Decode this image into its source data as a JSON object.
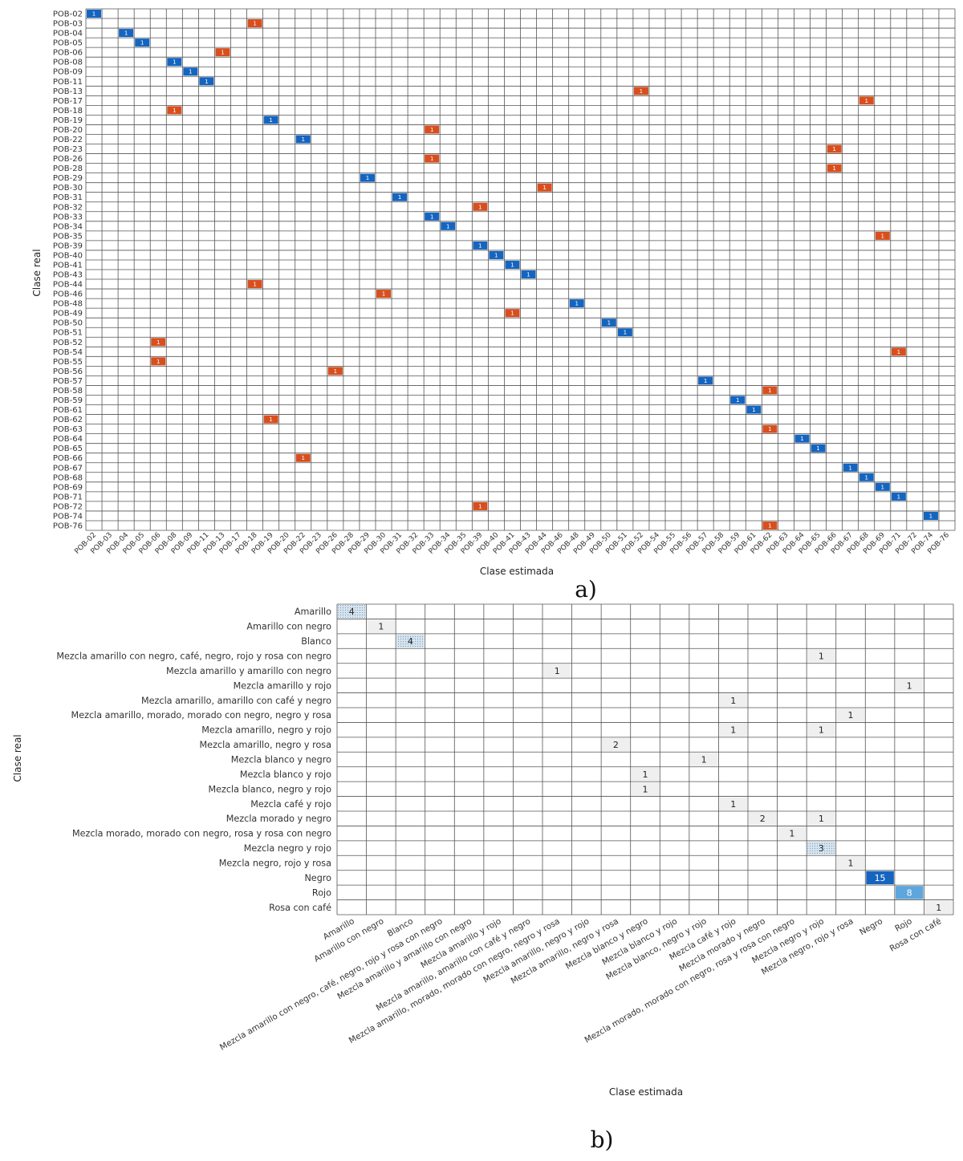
{
  "chart_data": [
    {
      "type": "heatmap",
      "panel_label": "a)",
      "xlabel": "Clase estimada",
      "ylabel": "Clase real",
      "colors": {
        "correct": "#1565c0",
        "incorrect": "#d84f1e",
        "grid": "#555555"
      },
      "rows": [
        "POB-02",
        "POB-03",
        "POB-04",
        "POB-05",
        "POB-06",
        "POB-08",
        "POB-09",
        "POB-11",
        "POB-13",
        "POB-17",
        "POB-18",
        "POB-19",
        "POB-20",
        "POB-22",
        "POB-23",
        "POB-26",
        "POB-28",
        "POB-29",
        "POB-30",
        "POB-31",
        "POB-32",
        "POB-33",
        "POB-34",
        "POB-35",
        "POB-39",
        "POB-40",
        "POB-41",
        "POB-43",
        "POB-44",
        "POB-46",
        "POB-48",
        "POB-49",
        "POB-50",
        "POB-51",
        "POB-52",
        "POB-54",
        "POB-55",
        "POB-56",
        "POB-57",
        "POB-58",
        "POB-59",
        "POB-61",
        "POB-62",
        "POB-63",
        "POB-64",
        "POB-65",
        "POB-66",
        "POB-67",
        "POB-68",
        "POB-69",
        "POB-71",
        "POB-72",
        "POB-74",
        "POB-76"
      ],
      "columns": [
        "POB-02",
        "POB-03",
        "POB-04",
        "POB-05",
        "POB-06",
        "POB-08",
        "POB-09",
        "POB-11",
        "POB-13",
        "POB-17",
        "POB-18",
        "POB-19",
        "POB-20",
        "POB-22",
        "POB-23",
        "POB-26",
        "POB-28",
        "POB-29",
        "POB-30",
        "POB-31",
        "POB-32",
        "POB-33",
        "POB-34",
        "POB-35",
        "POB-39",
        "POB-40",
        "POB-41",
        "POB-43",
        "POB-44",
        "POB-46",
        "POB-48",
        "POB-49",
        "POB-50",
        "POB-51",
        "POB-52",
        "POB-54",
        "POB-55",
        "POB-56",
        "POB-57",
        "POB-58",
        "POB-59",
        "POB-61",
        "POB-62",
        "POB-63",
        "POB-64",
        "POB-65",
        "POB-66",
        "POB-67",
        "POB-68",
        "POB-69",
        "POB-71",
        "POB-72",
        "POB-74",
        "POB-76"
      ],
      "cells": [
        {
          "row": "POB-02",
          "col": "POB-02",
          "value": 1,
          "kind": "correct"
        },
        {
          "row": "POB-03",
          "col": "POB-18",
          "value": 1,
          "kind": "incorrect"
        },
        {
          "row": "POB-04",
          "col": "POB-04",
          "value": 1,
          "kind": "correct"
        },
        {
          "row": "POB-05",
          "col": "POB-05",
          "value": 1,
          "kind": "correct"
        },
        {
          "row": "POB-06",
          "col": "POB-13",
          "value": 1,
          "kind": "incorrect"
        },
        {
          "row": "POB-08",
          "col": "POB-08",
          "value": 1,
          "kind": "correct"
        },
        {
          "row": "POB-09",
          "col": "POB-09",
          "value": 1,
          "kind": "correct"
        },
        {
          "row": "POB-11",
          "col": "POB-11",
          "value": 1,
          "kind": "correct"
        },
        {
          "row": "POB-13",
          "col": "POB-52",
          "value": 1,
          "kind": "incorrect"
        },
        {
          "row": "POB-17",
          "col": "POB-68",
          "value": 1,
          "kind": "incorrect"
        },
        {
          "row": "POB-18",
          "col": "POB-08",
          "value": 1,
          "kind": "incorrect"
        },
        {
          "row": "POB-19",
          "col": "POB-19",
          "value": 1,
          "kind": "correct"
        },
        {
          "row": "POB-20",
          "col": "POB-33",
          "value": 1,
          "kind": "incorrect"
        },
        {
          "row": "POB-22",
          "col": "POB-22",
          "value": 1,
          "kind": "correct"
        },
        {
          "row": "POB-23",
          "col": "POB-66",
          "value": 1,
          "kind": "incorrect"
        },
        {
          "row": "POB-26",
          "col": "POB-33",
          "value": 1,
          "kind": "incorrect"
        },
        {
          "row": "POB-28",
          "col": "POB-66",
          "value": 1,
          "kind": "incorrect"
        },
        {
          "row": "POB-29",
          "col": "POB-29",
          "value": 1,
          "kind": "correct"
        },
        {
          "row": "POB-30",
          "col": "POB-44",
          "value": 1,
          "kind": "incorrect"
        },
        {
          "row": "POB-31",
          "col": "POB-31",
          "value": 1,
          "kind": "correct"
        },
        {
          "row": "POB-32",
          "col": "POB-39",
          "value": 1,
          "kind": "incorrect"
        },
        {
          "row": "POB-33",
          "col": "POB-33",
          "value": 1,
          "kind": "correct"
        },
        {
          "row": "POB-34",
          "col": "POB-34",
          "value": 1,
          "kind": "correct"
        },
        {
          "row": "POB-35",
          "col": "POB-69",
          "value": 1,
          "kind": "incorrect"
        },
        {
          "row": "POB-39",
          "col": "POB-39",
          "value": 1,
          "kind": "correct"
        },
        {
          "row": "POB-40",
          "col": "POB-40",
          "value": 1,
          "kind": "correct"
        },
        {
          "row": "POB-41",
          "col": "POB-41",
          "value": 1,
          "kind": "correct"
        },
        {
          "row": "POB-43",
          "col": "POB-43",
          "value": 1,
          "kind": "correct"
        },
        {
          "row": "POB-44",
          "col": "POB-18",
          "value": 1,
          "kind": "incorrect"
        },
        {
          "row": "POB-46",
          "col": "POB-30",
          "value": 1,
          "kind": "incorrect"
        },
        {
          "row": "POB-48",
          "col": "POB-48",
          "value": 1,
          "kind": "correct"
        },
        {
          "row": "POB-49",
          "col": "POB-41",
          "value": 1,
          "kind": "incorrect"
        },
        {
          "row": "POB-50",
          "col": "POB-50",
          "value": 1,
          "kind": "correct"
        },
        {
          "row": "POB-51",
          "col": "POB-51",
          "value": 1,
          "kind": "correct"
        },
        {
          "row": "POB-52",
          "col": "POB-06",
          "value": 1,
          "kind": "incorrect"
        },
        {
          "row": "POB-54",
          "col": "POB-71",
          "value": 1,
          "kind": "incorrect"
        },
        {
          "row": "POB-55",
          "col": "POB-06",
          "value": 1,
          "kind": "incorrect"
        },
        {
          "row": "POB-56",
          "col": "POB-26",
          "value": 1,
          "kind": "incorrect"
        },
        {
          "row": "POB-57",
          "col": "POB-57",
          "value": 1,
          "kind": "correct"
        },
        {
          "row": "POB-58",
          "col": "POB-62",
          "value": 1,
          "kind": "incorrect"
        },
        {
          "row": "POB-59",
          "col": "POB-59",
          "value": 1,
          "kind": "correct"
        },
        {
          "row": "POB-61",
          "col": "POB-61",
          "value": 1,
          "kind": "correct"
        },
        {
          "row": "POB-62",
          "col": "POB-19",
          "value": 1,
          "kind": "incorrect"
        },
        {
          "row": "POB-63",
          "col": "POB-62",
          "value": 1,
          "kind": "incorrect"
        },
        {
          "row": "POB-64",
          "col": "POB-64",
          "value": 1,
          "kind": "correct"
        },
        {
          "row": "POB-65",
          "col": "POB-65",
          "value": 1,
          "kind": "correct"
        },
        {
          "row": "POB-66",
          "col": "POB-22",
          "value": 1,
          "kind": "incorrect"
        },
        {
          "row": "POB-67",
          "col": "POB-67",
          "value": 1,
          "kind": "correct"
        },
        {
          "row": "POB-68",
          "col": "POB-68",
          "value": 1,
          "kind": "correct"
        },
        {
          "row": "POB-69",
          "col": "POB-69",
          "value": 1,
          "kind": "correct"
        },
        {
          "row": "POB-71",
          "col": "POB-71",
          "value": 1,
          "kind": "correct"
        },
        {
          "row": "POB-72",
          "col": "POB-39",
          "value": 1,
          "kind": "incorrect"
        },
        {
          "row": "POB-74",
          "col": "POB-74",
          "value": 1,
          "kind": "correct"
        },
        {
          "row": "POB-76",
          "col": "POB-62",
          "value": 1,
          "kind": "incorrect"
        }
      ]
    },
    {
      "type": "heatmap",
      "panel_label": "b)",
      "xlabel": "Clase estimada",
      "ylabel": "Clase real",
      "colors": {
        "low": "#efefef",
        "mid_dotted": "#c9dbe9",
        "light_blue": "#5ea6dc",
        "dark_blue": "#1565c0",
        "grid": "#555555"
      },
      "rows": [
        "Amarillo",
        "Amarillo con negro",
        "Blanco",
        "Mezcla amarillo con negro, café, negro, rojo y rosa con negro",
        "Mezcla amarillo y amarillo con negro",
        "Mezcla amarillo y rojo",
        "Mezcla amarillo, amarillo con café y negro",
        "Mezcla amarillo, morado, morado con negro, negro y rosa",
        "Mezcla amarillo, negro y rojo",
        "Mezcla amarillo, negro y rosa",
        "Mezcla blanco y negro",
        "Mezcla blanco y rojo",
        "Mezcla blanco, negro y rojo",
        "Mezcla café y rojo",
        "Mezcla morado y negro",
        "Mezcla morado, morado con negro, rosa y rosa con negro",
        "Mezcla negro y rojo",
        "Mezcla negro, rojo y rosa",
        "Negro",
        "Rojo",
        "Rosa con café"
      ],
      "columns": [
        "Amarillo",
        "Amarillo con negro",
        "Blanco",
        "Mezcla amarillo con negro, café, negro, rojo y rosa con negro",
        "Mezcla amarillo y amarillo con negro",
        "Mezcla amarillo y rojo",
        "Mezcla amarillo, amarillo con café y negro",
        "Mezcla amarillo, morado, morado con negro, negro y rosa",
        "Mezcla amarillo, negro y rojo",
        "Mezcla amarillo, negro y rosa",
        "Mezcla blanco y negro",
        "Mezcla blanco y rojo",
        "Mezcla blanco, negro y rojo",
        "Mezcla café y rojo",
        "Mezcla morado y negro",
        "Mezcla morado, morado con negro, rosa y rosa con negro",
        "Mezcla negro y rojo",
        "Mezcla negro, rojo y rosa",
        "Negro",
        "Rojo",
        "Rosa con café"
      ],
      "cells": [
        {
          "row": "Amarillo",
          "col": "Amarillo",
          "value": 4,
          "style": "dotted"
        },
        {
          "row": "Amarillo con negro",
          "col": "Amarillo con negro",
          "value": 1,
          "style": "low"
        },
        {
          "row": "Blanco",
          "col": "Blanco",
          "value": 4,
          "style": "dotted"
        },
        {
          "row": "Mezcla amarillo con negro, café, negro, rojo y rosa con negro",
          "col": "Mezcla negro y rojo",
          "value": 1,
          "style": "low"
        },
        {
          "row": "Mezcla amarillo y amarillo con negro",
          "col": "Mezcla amarillo, morado, morado con negro, negro y rosa",
          "value": 1,
          "style": "low"
        },
        {
          "row": "Mezcla amarillo y rojo",
          "col": "Rojo",
          "value": 1,
          "style": "low"
        },
        {
          "row": "Mezcla amarillo, amarillo con café y negro",
          "col": "Mezcla café y rojo",
          "value": 1,
          "style": "low"
        },
        {
          "row": "Mezcla amarillo, morado, morado con negro, negro y rosa",
          "col": "Mezcla negro, rojo y rosa",
          "value": 1,
          "style": "low"
        },
        {
          "row": "Mezcla amarillo, negro y rojo",
          "col": "Mezcla café y rojo",
          "value": 1,
          "style": "low"
        },
        {
          "row": "Mezcla amarillo, negro y rojo",
          "col": "Mezcla negro y rojo",
          "value": 1,
          "style": "low"
        },
        {
          "row": "Mezcla amarillo, negro y rosa",
          "col": "Mezcla amarillo, negro y rosa",
          "value": 2,
          "style": "low"
        },
        {
          "row": "Mezcla blanco y negro",
          "col": "Mezcla blanco, negro y rojo",
          "value": 1,
          "style": "low"
        },
        {
          "row": "Mezcla blanco y rojo",
          "col": "Mezcla blanco y negro",
          "value": 1,
          "style": "low"
        },
        {
          "row": "Mezcla blanco, negro y rojo",
          "col": "Mezcla blanco y negro",
          "value": 1,
          "style": "low"
        },
        {
          "row": "Mezcla café y rojo",
          "col": "Mezcla café y rojo",
          "value": 1,
          "style": "low"
        },
        {
          "row": "Mezcla morado y negro",
          "col": "Mezcla morado y negro",
          "value": 2,
          "style": "low"
        },
        {
          "row": "Mezcla morado y negro",
          "col": "Mezcla negro y rojo",
          "value": 1,
          "style": "low"
        },
        {
          "row": "Mezcla morado, morado con negro, rosa y rosa con negro",
          "col": "Mezcla morado, morado con negro, rosa y rosa con negro",
          "value": 1,
          "style": "low"
        },
        {
          "row": "Mezcla negro y rojo",
          "col": "Mezcla negro y rojo",
          "value": 3,
          "style": "dotted"
        },
        {
          "row": "Mezcla negro, rojo y rosa",
          "col": "Mezcla negro, rojo y rosa",
          "value": 1,
          "style": "low"
        },
        {
          "row": "Negro",
          "col": "Negro",
          "value": 15,
          "style": "dark_blue"
        },
        {
          "row": "Rojo",
          "col": "Rojo",
          "value": 8,
          "style": "light_blue"
        },
        {
          "row": "Rosa con café",
          "col": "Rosa con café",
          "value": 1,
          "style": "low"
        }
      ]
    }
  ]
}
